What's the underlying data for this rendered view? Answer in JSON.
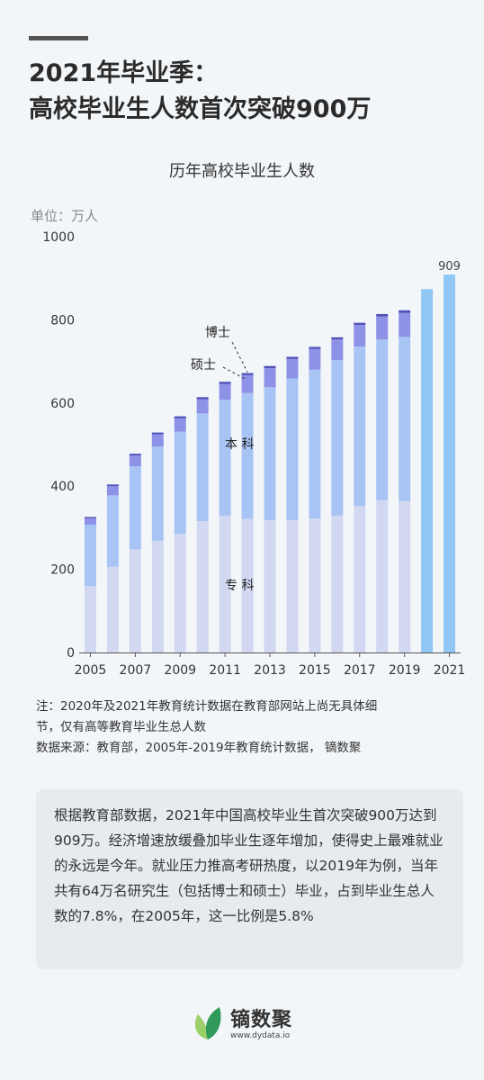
{
  "header": {
    "title_line1": "2021年毕业季：",
    "title_line2": "高校毕业生人数首次突破900万"
  },
  "chart_data": {
    "type": "bar",
    "stacked": true,
    "title": "历年高校毕业生人数",
    "ylabel": "单位：万人",
    "ylim": [
      0,
      1000
    ],
    "yticks": [
      0,
      200,
      400,
      600,
      800,
      1000
    ],
    "xtick_labels": [
      "2005",
      "2007",
      "2009",
      "2011",
      "2013",
      "2015",
      "2017",
      "2019",
      "2021"
    ],
    "categories": [
      "2005",
      "2006",
      "2007",
      "2008",
      "2009",
      "2010",
      "2011",
      "2012",
      "2013",
      "2014",
      "2015",
      "2016",
      "2017",
      "2018",
      "2019",
      "2020",
      "2021"
    ],
    "series": [
      {
        "name": "专科",
        "values": [
          160,
          206,
          248,
          269,
          285,
          316,
          329,
          321,
          318,
          318,
          322,
          329,
          352,
          366,
          364,
          null,
          null
        ]
      },
      {
        "name": "本科",
        "values": [
          147,
          172,
          200,
          226,
          246,
          259,
          279,
          303,
          320,
          341,
          358,
          374,
          384,
          387,
          395,
          null,
          null
        ]
      },
      {
        "name": "硕士",
        "values": [
          16,
          22,
          26,
          30,
          32,
          34,
          38,
          43,
          46,
          47,
          50,
          50,
          52,
          55,
          58,
          null,
          null
        ]
      },
      {
        "name": "博士",
        "values": [
          3,
          4,
          4,
          4,
          5,
          5,
          5,
          5,
          5,
          5,
          5,
          5,
          5,
          6,
          6,
          null,
          null
        ]
      },
      {
        "name": "总人数",
        "values": [
          null,
          null,
          null,
          null,
          null,
          null,
          null,
          null,
          null,
          null,
          null,
          null,
          null,
          null,
          null,
          874,
          909
        ]
      }
    ],
    "annotations": {
      "last_value": "909",
      "label_doctor": "博士",
      "label_master": "硕士",
      "label_bachelor": "本 科",
      "label_junior": "专 科"
    },
    "colors": {
      "专科": "#d2d8f2",
      "本科": "#a7c4f4",
      "硕士": "#8e92e6",
      "博士": "#4f4fb8",
      "总人数": "#91c7f4"
    },
    "grid": false
  },
  "notes": {
    "line1": "注：2020年及2021年教育统计数据在教育部网站上尚无具体细",
    "line2": "节，仅有高等教育毕业生总人数",
    "line3": "数据来源：教育部，2005年-2019年教育统计数据， 镝数聚"
  },
  "summary": {
    "text": "根据教育部数据，2021年中国高校毕业生首次突破900万达到909万。经济增速放缓叠加毕业生逐年增加，使得史上最难就业的永远是今年。就业压力推高考研热度，以2019年为例，当年共有64万名研究生（包括博士和硕士）毕业，占到毕业生总人数的7.8%，在2005年，这一比例是5.8%"
  },
  "brand": {
    "name": "镝数聚",
    "url": "www.dydata.io"
  }
}
